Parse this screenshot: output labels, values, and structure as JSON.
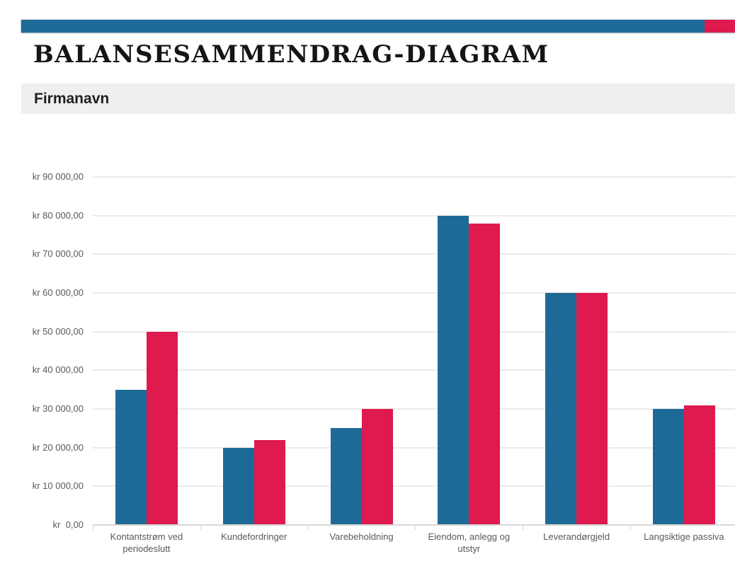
{
  "banner": {
    "blue_color": "#1e6a96",
    "red_color": "#de1a4e"
  },
  "header": {
    "title": "BALANSESAMMENDRAG-DIAGRAM",
    "company_label": "Firmanavn"
  },
  "chart_data": {
    "type": "bar",
    "title": "",
    "xlabel": "",
    "ylabel": "",
    "categories": [
      "Kontantstrøm ved periodeslutt",
      "Kundefordringer",
      "Varebeholdning",
      "Eiendom, anlegg og utstyr",
      "Leverandørgjeld",
      "Langsiktige passiva"
    ],
    "series": [
      {
        "name": "blue",
        "color": "#1e6a96",
        "values": [
          35000,
          20000,
          25000,
          80000,
          60000,
          30000
        ]
      },
      {
        "name": "red",
        "color": "#de1a4e",
        "values": [
          50000,
          22000,
          30000,
          78000,
          60000,
          31000
        ]
      }
    ],
    "y_ticks": [
      {
        "value": 90000,
        "label": "kr 90 000,00"
      },
      {
        "value": 80000,
        "label": "kr 80 000,00"
      },
      {
        "value": 70000,
        "label": "kr 70 000,00"
      },
      {
        "value": 60000,
        "label": "kr 60 000,00"
      },
      {
        "value": 50000,
        "label": "kr 50 000,00"
      },
      {
        "value": 40000,
        "label": "kr 40 000,00"
      },
      {
        "value": 30000,
        "label": "kr 30 000,00"
      },
      {
        "value": 20000,
        "label": "kr 20 000,00"
      },
      {
        "value": 10000,
        "label": "kr 10 000,00"
      },
      {
        "value": 0,
        "label": "kr  0,00"
      }
    ],
    "ylim": [
      0,
      90000
    ],
    "grid": true,
    "legend": "none",
    "currency": "kr"
  }
}
